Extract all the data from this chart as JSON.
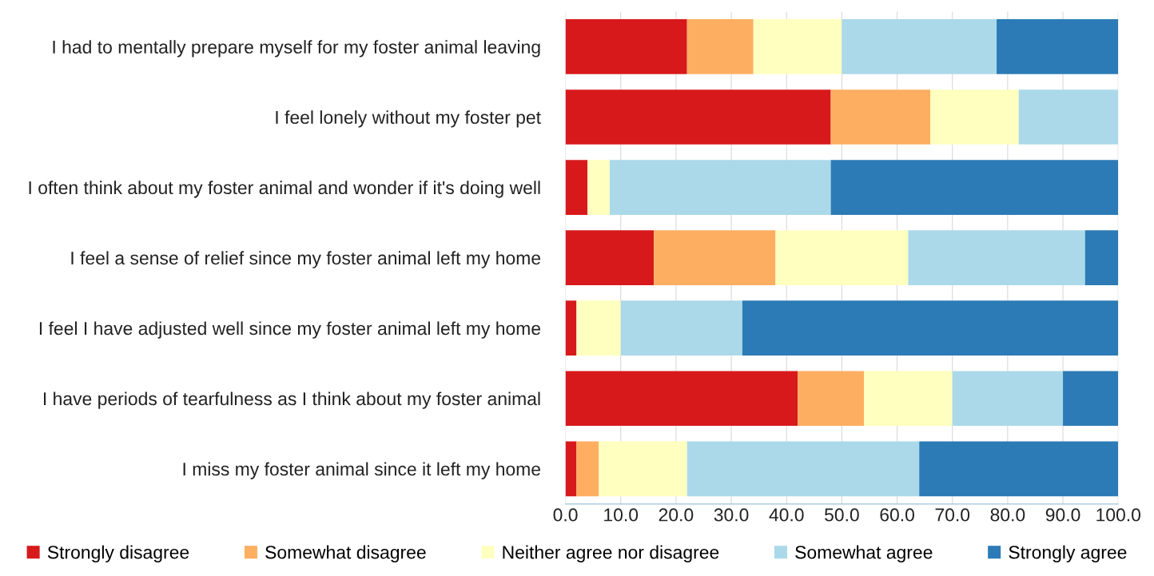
{
  "chart_data": {
    "type": "bar",
    "orientation": "horizontal",
    "stacked": true,
    "categories": [
      "I had to mentally prepare myself for my foster animal leaving",
      "I feel lonely without my foster pet",
      "I often think about my foster animal and wonder if it's doing well",
      "I feel a sense of relief since my foster animal left my home",
      "I feel I have adjusted well since my foster animal left my home",
      "I have periods of tearfulness as I think about my foster animal",
      "I miss my foster animal since it left my home"
    ],
    "series": [
      {
        "name": "Strongly disagree",
        "color": "#d7191c",
        "values": [
          22,
          48,
          4,
          16,
          2,
          42,
          2
        ]
      },
      {
        "name": "Somewhat disagree",
        "color": "#fdae61",
        "values": [
          12,
          18,
          0,
          22,
          0,
          12,
          4
        ]
      },
      {
        "name": "Neither agree nor disagree",
        "color": "#ffffbf",
        "values": [
          16,
          16,
          4,
          24,
          8,
          16,
          16
        ]
      },
      {
        "name": "Somewhat agree",
        "color": "#abd9e9",
        "values": [
          28,
          18,
          40,
          32,
          22,
          20,
          42
        ]
      },
      {
        "name": "Strongly agree",
        "color": "#2c7bb6",
        "values": [
          22,
          0,
          52,
          6,
          68,
          10,
          36
        ]
      }
    ],
    "xlim": [
      0,
      100
    ],
    "xticks": [
      {
        "value": 0,
        "label": "0.0"
      },
      {
        "value": 10,
        "label": "10.0"
      },
      {
        "value": 20,
        "label": "20.0"
      },
      {
        "value": 30,
        "label": "30.0"
      },
      {
        "value": 40,
        "label": "40.0"
      },
      {
        "value": 50,
        "label": "50.0"
      },
      {
        "value": 60,
        "label": "60.0"
      },
      {
        "value": 70,
        "label": "70.0"
      },
      {
        "value": 80,
        "label": "80.0"
      },
      {
        "value": 90,
        "label": "90.0"
      },
      {
        "value": 100,
        "label": "100.0"
      }
    ],
    "grid": "x",
    "legend": "bottom"
  }
}
